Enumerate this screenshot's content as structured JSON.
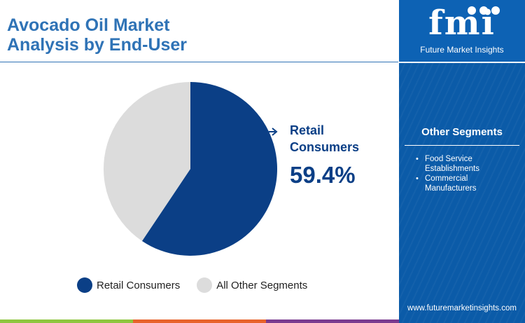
{
  "header": {
    "title_line1": "Avocado Oil Market",
    "title_line2": "Analysis by End-User"
  },
  "chart_data": {
    "type": "pie",
    "slices": [
      {
        "label": "Retail Consumers",
        "value": 59.4,
        "color": "#0b3f86"
      },
      {
        "label": "All Other Segments",
        "value": 40.6,
        "color": "#dcdcdc"
      }
    ],
    "callout": {
      "label_line1": "Retail",
      "label_line2": "Consumers",
      "value_text": "59.4%"
    },
    "legend": [
      {
        "label": "Retail Consumers",
        "color": "#0b3f86"
      },
      {
        "label": "All Other Segments",
        "color": "#dcdcdc"
      }
    ]
  },
  "sidebar": {
    "logo_text": "fmi",
    "logo_caption": "Future Market Insights",
    "other_segments_title": "Other Segments",
    "other_segments": [
      "Food Service Establishments",
      "Commercial Manufacturers"
    ],
    "website": "www.futuremarketinsights.com"
  },
  "colors": {
    "title": "#2f73b6",
    "primary": "#0b3f86",
    "secondary": "#dcdcdc",
    "panel": "#0b5ba8",
    "bar_green": "#8ec63f",
    "bar_orange": "#e8632b",
    "bar_purple": "#7a3b8f",
    "bar_gray": "#b3b3b3"
  }
}
